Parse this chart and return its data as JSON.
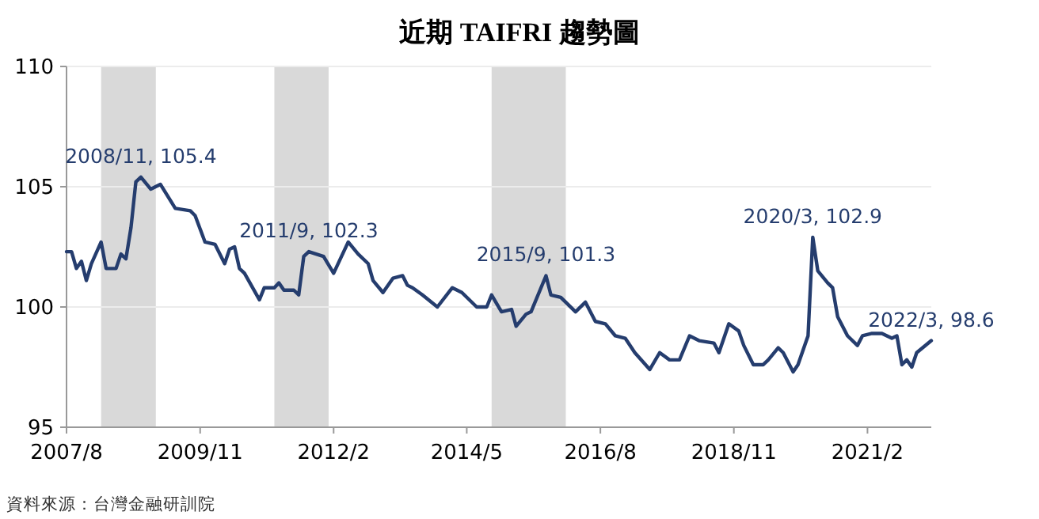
{
  "chart_data": {
    "type": "line",
    "title": "近期 TAIFRI 趨勢圖",
    "x": [
      "2007-08",
      "2007-09",
      "2007-10",
      "2007-11",
      "2007-12",
      "2008-01",
      "2008-03",
      "2008-04",
      "2008-06",
      "2008-07",
      "2008-08",
      "2008-09",
      "2008-10",
      "2008-11",
      "2009-01",
      "2009-03",
      "2009-06",
      "2009-09",
      "2009-10",
      "2009-12",
      "2010-02",
      "2010-04",
      "2010-05",
      "2010-06",
      "2010-07",
      "2010-08",
      "2010-11",
      "2010-12",
      "2011-02",
      "2011-03",
      "2011-04",
      "2011-06",
      "2011-07",
      "2011-08",
      "2011-09",
      "2011-12",
      "2012-02",
      "2012-05",
      "2012-07",
      "2012-09",
      "2012-10",
      "2012-12",
      "2013-02",
      "2013-04",
      "2013-05",
      "2013-06",
      "2013-08",
      "2013-11",
      "2014-02",
      "2014-04",
      "2014-07",
      "2014-09",
      "2014-10",
      "2014-12",
      "2015-02",
      "2015-03",
      "2015-05",
      "2015-06",
      "2015-09",
      "2015-10",
      "2015-12",
      "2016-03",
      "2016-05",
      "2016-07",
      "2016-09",
      "2016-11",
      "2017-01",
      "2017-03",
      "2017-06",
      "2017-08",
      "2017-10",
      "2017-12",
      "2018-02",
      "2018-04",
      "2018-07",
      "2018-08",
      "2018-10",
      "2018-12",
      "2019-01",
      "2019-03",
      "2019-05",
      "2019-06",
      "2019-08",
      "2019-09",
      "2019-11",
      "2019-12",
      "2020-02",
      "2020-03",
      "2020-04",
      "2020-06",
      "2020-07",
      "2020-08",
      "2020-10",
      "2020-12",
      "2021-01",
      "2021-03",
      "2021-05",
      "2021-07",
      "2021-08",
      "2021-09",
      "2021-10",
      "2021-11",
      "2021-12",
      "2022-03"
    ],
    "series": [
      {
        "color": "#253d6e",
        "values": [
          102.3,
          102.3,
          101.6,
          101.9,
          101.1,
          101.8,
          102.7,
          101.6,
          101.6,
          102.2,
          102.0,
          103.3,
          105.2,
          105.4,
          104.9,
          105.1,
          104.1,
          104.0,
          103.8,
          102.7,
          102.6,
          101.8,
          102.4,
          102.5,
          101.6,
          101.4,
          100.3,
          100.8,
          100.8,
          101.0,
          100.7,
          100.7,
          100.5,
          102.1,
          102.3,
          102.1,
          101.4,
          102.7,
          102.2,
          101.8,
          101.1,
          100.6,
          101.2,
          101.3,
          100.9,
          100.8,
          100.5,
          100.0,
          100.8,
          100.6,
          100.0,
          100.0,
          100.5,
          99.8,
          99.9,
          99.2,
          99.7,
          99.8,
          101.3,
          100.5,
          100.4,
          99.8,
          100.2,
          99.4,
          99.3,
          98.8,
          98.7,
          98.1,
          97.4,
          98.1,
          97.8,
          97.8,
          98.8,
          98.6,
          98.5,
          98.1,
          99.3,
          99.0,
          98.4,
          97.6,
          97.6,
          97.8,
          98.3,
          98.1,
          97.3,
          97.6,
          98.8,
          102.9,
          101.5,
          101.0,
          100.8,
          99.6,
          98.8,
          98.4,
          98.8,
          98.9,
          98.9,
          98.7,
          98.8,
          97.6,
          97.8,
          97.5,
          98.1,
          98.6
        ]
      }
    ],
    "xlim": [
      "2007-08",
      "2022-03"
    ],
    "xticks": [
      {
        "value": "2007-08",
        "label": "2007/8"
      },
      {
        "value": "2009-11",
        "label": "2009/11"
      },
      {
        "value": "2012-02",
        "label": "2012/2"
      },
      {
        "value": "2014-05",
        "label": "2014/5"
      },
      {
        "value": "2016-08",
        "label": "2016/8"
      },
      {
        "value": "2018-11",
        "label": "2018/11"
      },
      {
        "value": "2021-02",
        "label": "2021/2"
      }
    ],
    "ylim": [
      95,
      110
    ],
    "yticks": [
      95,
      100,
      105,
      110
    ],
    "grid": "y",
    "marker": "none",
    "line_style": "solid",
    "bands": [
      {
        "axis": "x",
        "from": "2008-03",
        "to": "2009-02",
        "color": "#d9d9d9"
      },
      {
        "axis": "x",
        "from": "2011-02",
        "to": "2012-01",
        "color": "#d9d9d9"
      },
      {
        "axis": "x",
        "from": "2014-10",
        "to": "2016-01",
        "color": "#d9d9d9"
      }
    ],
    "annotations": [
      {
        "text": "2008/11, 105.4",
        "x": "2008-11",
        "y": 105.4
      },
      {
        "text": "2011/9, 102.3",
        "x": "2011-09",
        "y": 102.3
      },
      {
        "text": "2015/9, 101.3",
        "x": "2015-09",
        "y": 101.3
      },
      {
        "text": "2020/3, 102.9",
        "x": "2020-03",
        "y": 102.9
      },
      {
        "text": "2022/3, 98.6",
        "x": "2022-03",
        "y": 98.6
      },
      "資料來源：台灣金融研訓院"
    ]
  }
}
